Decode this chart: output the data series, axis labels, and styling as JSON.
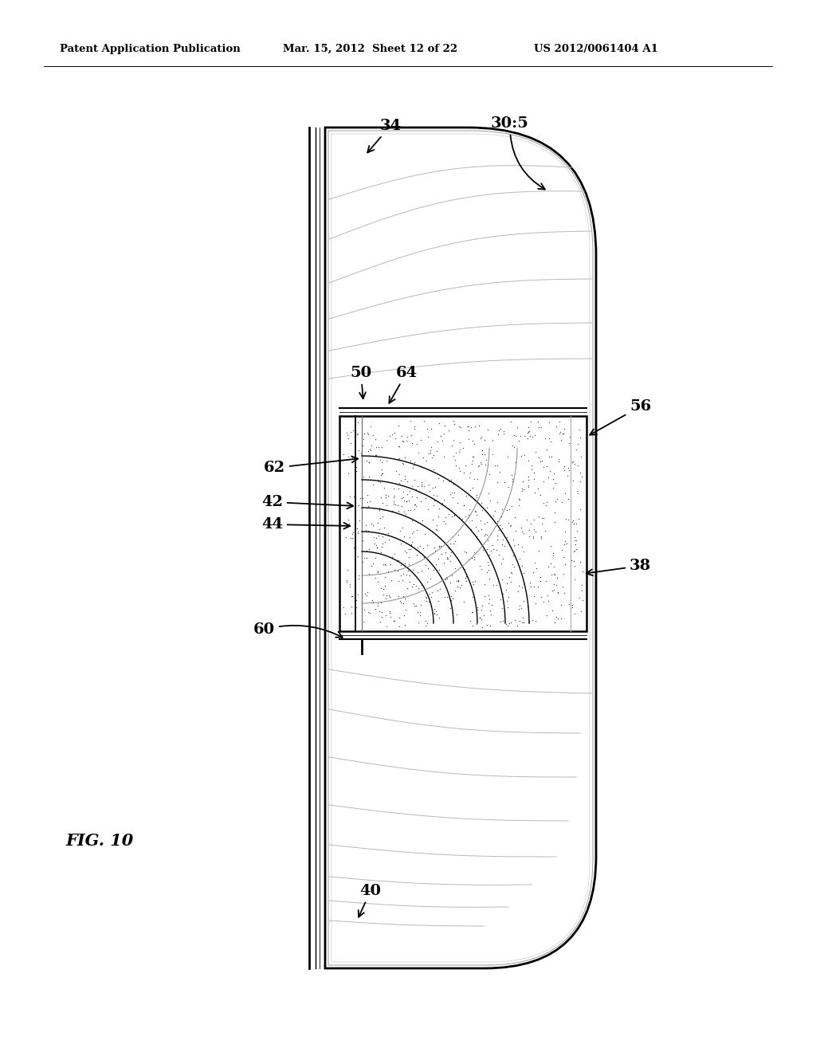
{
  "bg_color": "#ffffff",
  "header_left": "Patent Application Publication",
  "header_mid": "Mar. 15, 2012  Sheet 12 of 22",
  "header_right": "US 2012/0061404 A1",
  "fig_label": "FIG. 10",
  "label_fontsize": 14,
  "header_fontsize": 9.5
}
